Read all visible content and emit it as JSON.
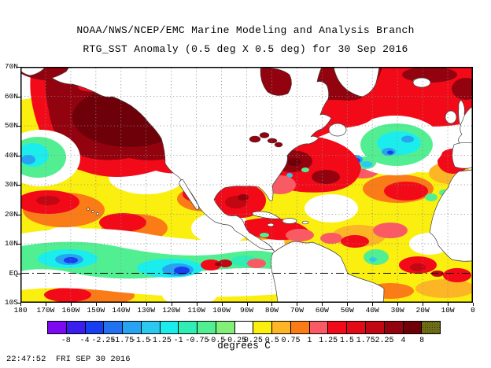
{
  "header": {
    "line1": "NOAA/NWS/NCEP/EMC Marine Modeling and Analysis Branch",
    "line2": "RTG_SST Anomaly (0.5 deg X 0.5 deg) for 30 Sep 2016"
  },
  "map": {
    "y_ticks": [
      "70N",
      "60N",
      "50N",
      "40N",
      "30N",
      "20N",
      "10N",
      "EQ",
      "10S"
    ],
    "x_ticks": [
      "180",
      "170W",
      "160W",
      "150W",
      "140W",
      "130W",
      "120W",
      "110W",
      "100W",
      "90W",
      "80W",
      "70W",
      "60W",
      "50W",
      "40W",
      "30W",
      "20W",
      "10W",
      "0"
    ]
  },
  "colorbar": {
    "units_label": "degrees C",
    "boundary_labels": [
      "-8",
      "-4",
      "-2.25",
      "-1.75",
      "-1.5",
      "-1.25",
      "-1",
      "-0.75",
      "-0.5",
      "-0.25",
      "0.25",
      "0.5",
      "0.75",
      "1",
      "1.25",
      "1.5",
      "1.75",
      "2.25",
      "4",
      "8"
    ],
    "colors": [
      "#7C09F1",
      "#3A1EEF",
      "#173FF0",
      "#2272F0",
      "#27A3F2",
      "#2BC9EF",
      "#1BEDED",
      "#2FEDB5",
      "#52EF92",
      "#82F078",
      "#FFFFFF",
      "#FBEF0F",
      "#FCB525",
      "#FB7B17",
      "#FA5A64",
      "#F30A18",
      "#E30915",
      "#C10712",
      "#92030F",
      "#6E0009",
      "#6E6E16"
    ]
  },
  "footer": {
    "timestamp": "22:47:52  FRI SEP 30 2016"
  },
  "chart_data": {
    "type": "heatmap",
    "title": "RTG_SST Anomaly (0.5 deg X 0.5 deg) for 30 Sep 2016",
    "source_line": "NOAA/NWS/NCEP/EMC Marine Modeling and Analysis Branch",
    "units": "degrees C",
    "x_axis": {
      "tick_labels": [
        "180",
        "170W",
        "160W",
        "150W",
        "140W",
        "130W",
        "120W",
        "110W",
        "100W",
        "90W",
        "80W",
        "70W",
        "60W",
        "50W",
        "40W",
        "30W",
        "20W",
        "10W",
        "0"
      ],
      "range_lon_deg": [
        -180,
        0
      ]
    },
    "y_axis": {
      "tick_labels": [
        "70N",
        "60N",
        "50N",
        "40N",
        "30N",
        "20N",
        "10N",
        "EQ",
        "10S"
      ],
      "range_lat_deg": [
        -10,
        70
      ]
    },
    "grid": "dotted 10-degree graticule, equator drawn dash-dot",
    "legend_position": "horizontal colorbar at bottom",
    "color_levels_degC": [
      -8,
      -4,
      -2.25,
      -1.75,
      -1.5,
      -1.25,
      -1,
      -0.75,
      -0.5,
      -0.25,
      0.25,
      0.5,
      0.75,
      1,
      1.25,
      1.5,
      1.75,
      2.25,
      4,
      8
    ],
    "palette": [
      "#7C09F1",
      "#3A1EEF",
      "#173FF0",
      "#2272F0",
      "#27A3F2",
      "#2BC9EF",
      "#1BEDED",
      "#2FEDB5",
      "#52EF92",
      "#82F078",
      "#FFFFFF",
      "#FBEF0F",
      "#FCB525",
      "#FB7B17",
      "#FA5A64",
      "#F30A18",
      "#E30915",
      "#C10712",
      "#92030F",
      "#6E0009",
      "#6E6E16"
    ],
    "notable_features": [
      {
        "region": "NE Pacific / Gulf of Alaska (55-30N, 170-130W)",
        "anomaly_degC": "+2.25 to +8 (large dark-red warm blob)"
      },
      {
        "region": "Equatorial Pacific (5N-5S, 180-100W)",
        "anomaly_degC": "-0.5 to -2 (cool cyan/blue band)"
      },
      {
        "region": "Central North Atlantic south of Greenland (50-55N, 45-25W)",
        "anomaly_degC": "-0.5 to -1.75 (cool green/cyan pool)"
      },
      {
        "region": "Labrador Sea and seas around Greenland/Norway",
        "anomaly_degC": "+2.25 to +8"
      },
      {
        "region": "Gulf Stream / US East Coast",
        "anomaly_degC": "+1.5 to +8 patches"
      },
      {
        "region": "Northwest Africa coast (~15-30N)",
        "anomaly_degC": "-1 to -2 coastal upwelling strip"
      },
      {
        "region": "Subtropical gyres and tropical Atlantic",
        "anomaly_degC": "mostly +0.25 to +1.5 (yellow/orange/red)"
      }
    ]
  }
}
